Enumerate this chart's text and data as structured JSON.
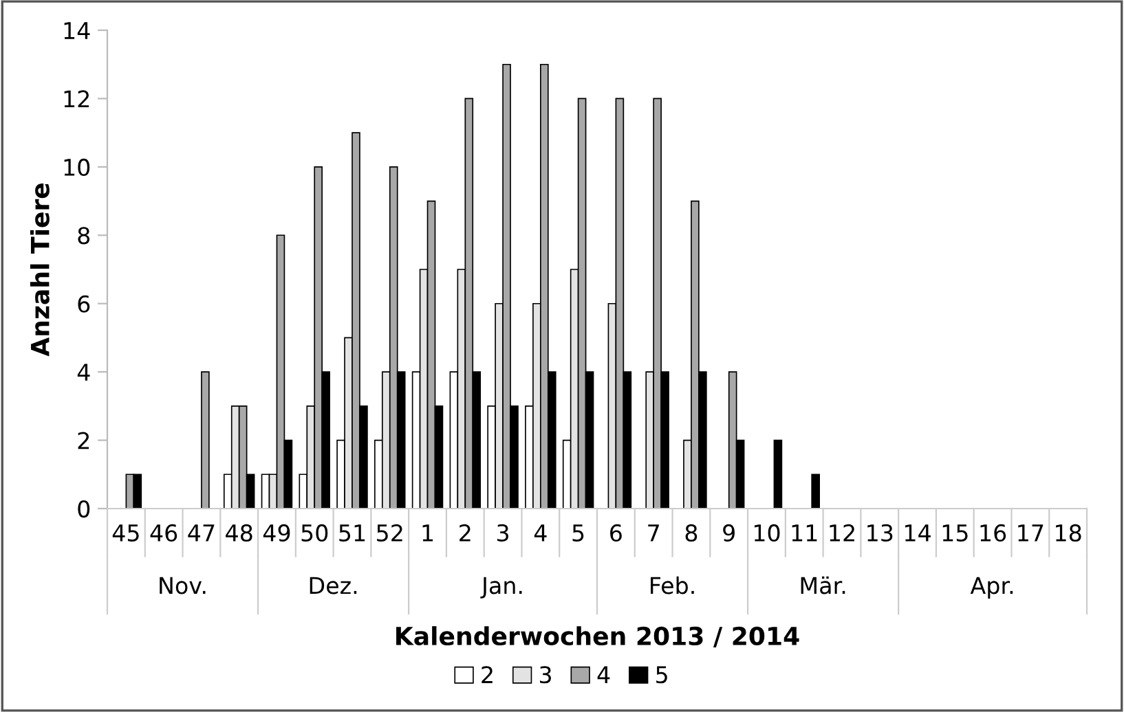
{
  "chart_data": {
    "type": "bar",
    "xlabel": "Kalenderwochen 2013 / 2014",
    "ylabel": "Anzahl Tiere",
    "categories": [
      "45",
      "46",
      "47",
      "48",
      "49",
      "50",
      "51",
      "52",
      "1",
      "2",
      "3",
      "4",
      "5",
      "6",
      "7",
      "8",
      "9",
      "10",
      "11",
      "12",
      "13",
      "14",
      "15",
      "16",
      "17",
      "18"
    ],
    "series": [
      {
        "name": "2",
        "color": "#ffffff",
        "values": [
          null,
          null,
          null,
          1,
          1,
          1,
          2,
          2,
          4,
          4,
          3,
          3,
          2,
          null,
          null,
          null,
          null,
          null,
          null,
          null,
          null,
          null,
          null,
          null,
          null,
          null
        ]
      },
      {
        "name": "3",
        "color": "#e3e3e3",
        "values": [
          null,
          null,
          null,
          3,
          1,
          3,
          5,
          4,
          7,
          7,
          6,
          6,
          7,
          6,
          4,
          2,
          null,
          null,
          null,
          null,
          null,
          null,
          null,
          null,
          null,
          null
        ]
      },
      {
        "name": "4",
        "color": "#a8a8a8",
        "values": [
          1,
          null,
          4,
          3,
          8,
          10,
          11,
          10,
          9,
          12,
          13,
          13,
          12,
          12,
          12,
          9,
          4,
          null,
          null,
          null,
          null,
          null,
          null,
          null,
          null,
          null
        ]
      },
      {
        "name": "5",
        "color": "#000000",
        "values": [
          1,
          null,
          null,
          1,
          2,
          4,
          3,
          4,
          3,
          4,
          3,
          4,
          4,
          4,
          4,
          4,
          2,
          2,
          1,
          null,
          null,
          null,
          null,
          null,
          null,
          null
        ]
      }
    ],
    "annotations": [
      "Nov.",
      "Dez.",
      "Jan.",
      "Feb.",
      "Mär.",
      "Apr."
    ],
    "ylim": [
      0,
      14
    ],
    "yticks": [
      0,
      2,
      4,
      6,
      8,
      10,
      12,
      14
    ],
    "grid": false,
    "legend": "bottom"
  }
}
